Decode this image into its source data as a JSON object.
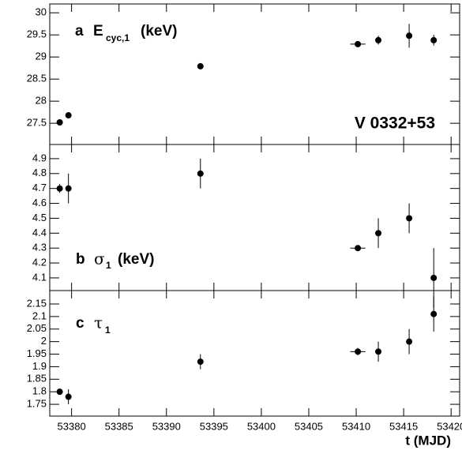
{
  "chart_data": [
    {
      "type": "scatter",
      "letter": "a",
      "quantity": "E",
      "subscript": "cyc,1",
      "unit": "(keV)",
      "annotation": "V 0332+53",
      "x": [
        53378.75,
        53379.67,
        53393.58,
        53410.17,
        53412.33,
        53415.58,
        53418.17
      ],
      "xerr": [
        0.3,
        0.3,
        0.3,
        0.8,
        0.3,
        0.3,
        0.3
      ],
      "values": [
        27.52,
        27.68,
        28.79,
        29.29,
        29.38,
        29.48,
        29.38
      ],
      "yerr": [
        0.03,
        0.06,
        0.05,
        0.03,
        0.1,
        0.27,
        0.12
      ],
      "xlim": [
        53377.7,
        53420.9
      ],
      "ylim": [
        27.02,
        30.2
      ],
      "yticks": [
        27.5,
        28,
        28.5,
        29,
        29.5,
        30
      ],
      "color": "#000000"
    },
    {
      "type": "scatter",
      "letter": "b",
      "quantity": "σ",
      "subscript": "1",
      "unit": "(keV)",
      "x": [
        53378.75,
        53379.67,
        53393.58,
        53410.17,
        53412.33,
        53415.58,
        53418.17
      ],
      "xerr": [
        0.3,
        0.3,
        0.3,
        0.8,
        0.3,
        0.3,
        0.3
      ],
      "values": [
        4.7,
        4.7,
        4.8,
        4.3,
        4.4,
        4.5,
        4.1
      ],
      "yerr": [
        0.03,
        0.1,
        0.1,
        0.01,
        0.1,
        0.1,
        0.2
      ],
      "xlim": [
        53377.7,
        53420.9
      ],
      "ylim": [
        4.015,
        4.995
      ],
      "yticks": [
        4.1,
        4.2,
        4.3,
        4.4,
        4.5,
        4.6,
        4.7,
        4.8,
        4.9
      ],
      "color": "#000000"
    },
    {
      "type": "scatter",
      "letter": "c",
      "quantity": "τ",
      "subscript": "1",
      "x_label": "t (MJD)",
      "x": [
        53378.75,
        53379.67,
        53393.58,
        53410.17,
        53412.33,
        53415.58,
        53418.17
      ],
      "xerr": [
        0.3,
        0.3,
        0.3,
        0.8,
        0.3,
        0.3,
        0.3
      ],
      "values": [
        1.8,
        1.78,
        1.92,
        1.96,
        1.96,
        2.0,
        2.11
      ],
      "yerr": [
        0.008,
        0.03,
        0.03,
        0.015,
        0.04,
        0.05,
        0.07
      ],
      "xlim": [
        53377.7,
        53420.9
      ],
      "ylim": [
        1.703,
        2.2035
      ],
      "xticks": [
        53380,
        53385,
        53390,
        53395,
        53400,
        53405,
        53410,
        53415,
        53420
      ],
      "yticks": [
        1.75,
        1.8,
        1.85,
        1.9,
        1.95,
        2,
        2.05,
        2.1,
        2.15
      ],
      "color": "#000000"
    }
  ]
}
